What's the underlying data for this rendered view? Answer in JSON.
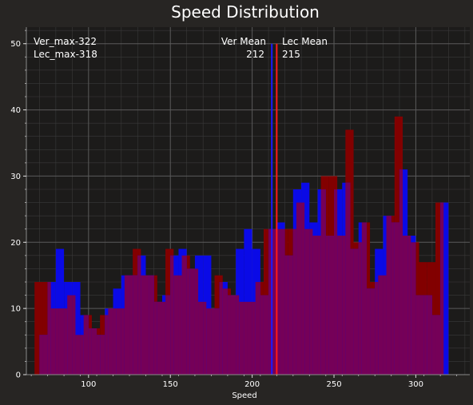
{
  "chart_data": {
    "type": "bar",
    "title": "Speed Distribution",
    "xlabel": "Speed",
    "ylabel": "",
    "xlim": [
      62,
      333
    ],
    "ylim": [
      0,
      52.5
    ],
    "xticks": [
      100,
      150,
      200,
      250,
      300
    ],
    "yticks": [
      0,
      10,
      20,
      30,
      40,
      50
    ],
    "grid": true,
    "series": [
      {
        "name": "Ver",
        "color": "#0a0ae6",
        "bin_width": 5,
        "bins": [
          [
            70,
            6
          ],
          [
            75,
            14
          ],
          [
            80,
            19
          ],
          [
            85,
            14
          ],
          [
            90,
            14
          ],
          [
            95,
            9
          ],
          [
            100,
            7
          ],
          [
            105,
            6
          ],
          [
            110,
            10
          ],
          [
            115,
            13
          ],
          [
            120,
            15
          ],
          [
            125,
            15
          ],
          [
            130,
            18
          ],
          [
            135,
            15
          ],
          [
            140,
            11
          ],
          [
            145,
            12
          ],
          [
            150,
            18
          ],
          [
            155,
            19
          ],
          [
            160,
            16
          ],
          [
            165,
            18
          ],
          [
            170,
            18
          ],
          [
            175,
            10
          ],
          [
            180,
            14
          ],
          [
            185,
            12
          ],
          [
            190,
            19
          ],
          [
            195,
            22
          ],
          [
            200,
            19
          ],
          [
            205,
            12
          ],
          [
            210,
            22
          ],
          [
            215,
            23
          ],
          [
            220,
            18
          ],
          [
            225,
            28
          ],
          [
            230,
            29
          ],
          [
            235,
            23
          ],
          [
            240,
            28
          ],
          [
            245,
            21
          ],
          [
            250,
            28
          ],
          [
            255,
            29
          ],
          [
            260,
            19
          ],
          [
            265,
            23
          ],
          [
            270,
            13
          ],
          [
            275,
            19
          ],
          [
            280,
            24
          ],
          [
            285,
            23
          ],
          [
            290,
            31
          ],
          [
            295,
            21
          ],
          [
            300,
            12
          ],
          [
            305,
            12
          ],
          [
            310,
            9
          ],
          [
            315,
            26
          ]
        ]
      },
      {
        "name": "Lec",
        "color": "#820000",
        "bin_width": 5,
        "bins": [
          [
            67,
            14
          ],
          [
            72,
            14
          ],
          [
            77,
            10
          ],
          [
            82,
            10
          ],
          [
            87,
            12
          ],
          [
            92,
            6
          ],
          [
            97,
            9
          ],
          [
            102,
            7
          ],
          [
            107,
            9
          ],
          [
            112,
            10
          ],
          [
            117,
            10
          ],
          [
            122,
            15
          ],
          [
            127,
            19
          ],
          [
            132,
            15
          ],
          [
            137,
            15
          ],
          [
            142,
            11
          ],
          [
            147,
            19
          ],
          [
            152,
            15
          ],
          [
            157,
            18
          ],
          [
            162,
            16
          ],
          [
            167,
            11
          ],
          [
            172,
            10
          ],
          [
            177,
            15
          ],
          [
            182,
            13
          ],
          [
            187,
            12
          ],
          [
            192,
            11
          ],
          [
            197,
            11
          ],
          [
            202,
            14
          ],
          [
            207,
            22
          ],
          [
            212,
            22
          ],
          [
            217,
            22
          ],
          [
            222,
            22
          ],
          [
            227,
            26
          ],
          [
            232,
            22
          ],
          [
            237,
            21
          ],
          [
            242,
            30
          ],
          [
            247,
            30
          ],
          [
            252,
            21
          ],
          [
            257,
            37
          ],
          [
            262,
            20
          ],
          [
            267,
            23
          ],
          [
            272,
            14
          ],
          [
            277,
            15
          ],
          [
            282,
            24
          ],
          [
            287,
            39
          ],
          [
            292,
            21
          ],
          [
            297,
            20
          ],
          [
            302,
            17
          ],
          [
            307,
            17
          ],
          [
            312,
            26
          ]
        ]
      }
    ],
    "mean_lines": [
      {
        "name": "Ver Mean",
        "value": 212,
        "label": "Ver Mean",
        "value_label": "212",
        "color": "#1a1aff"
      },
      {
        "name": "Lec Mean",
        "value": 215,
        "label": "Lec Mean",
        "value_label": "215",
        "color": "#ff1a1a"
      }
    ],
    "annotations": [
      "Ver_max-322",
      "Lec_max-318"
    ],
    "colors": {
      "background": "#272523",
      "plot_background": "#1c1b1a",
      "text": "#ffffff",
      "major_grid": "#5a5a5a",
      "minor_grid": "#3a3a3a",
      "overlap": "#750058"
    }
  }
}
